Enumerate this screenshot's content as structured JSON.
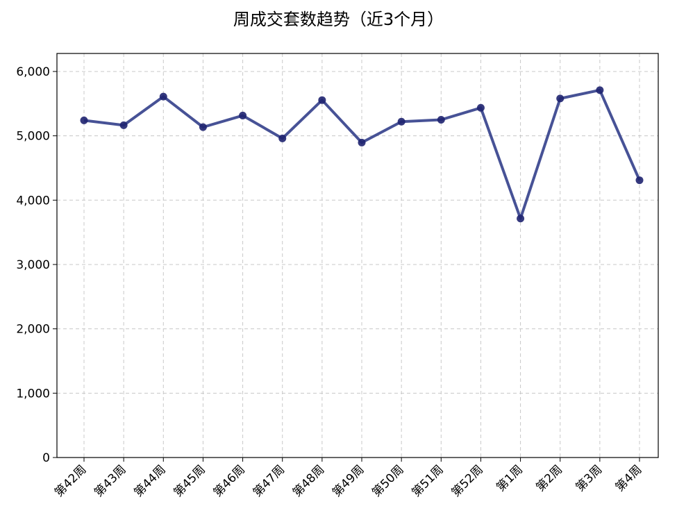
{
  "chart_data": {
    "type": "line",
    "title": "周成交套数趋势（近3个月）",
    "xlabel": "",
    "ylabel": "",
    "categories": [
      "第42周",
      "第43周",
      "第44周",
      "第45周",
      "第46周",
      "第47周",
      "第48周",
      "第49周",
      "第50周",
      "第51周",
      "第52周",
      "第1周",
      "第2周",
      "第3周",
      "第4周"
    ],
    "series": [
      {
        "values": [
          5240,
          5165,
          5610,
          5135,
          5315,
          4960,
          5555,
          4895,
          5220,
          5250,
          5435,
          3715,
          5580,
          5710,
          4310
        ]
      }
    ],
    "ylim": [
      0,
      6280
    ],
    "yticks": [
      0,
      1000,
      2000,
      3000,
      4000,
      5000,
      6000
    ],
    "ytick_labels": [
      "0",
      "1,000",
      "2,000",
      "3,000",
      "4,000",
      "5,000",
      "6,000"
    ],
    "grid": true,
    "line_color": "#2e3a87",
    "marker_color": "#1f2470"
  }
}
